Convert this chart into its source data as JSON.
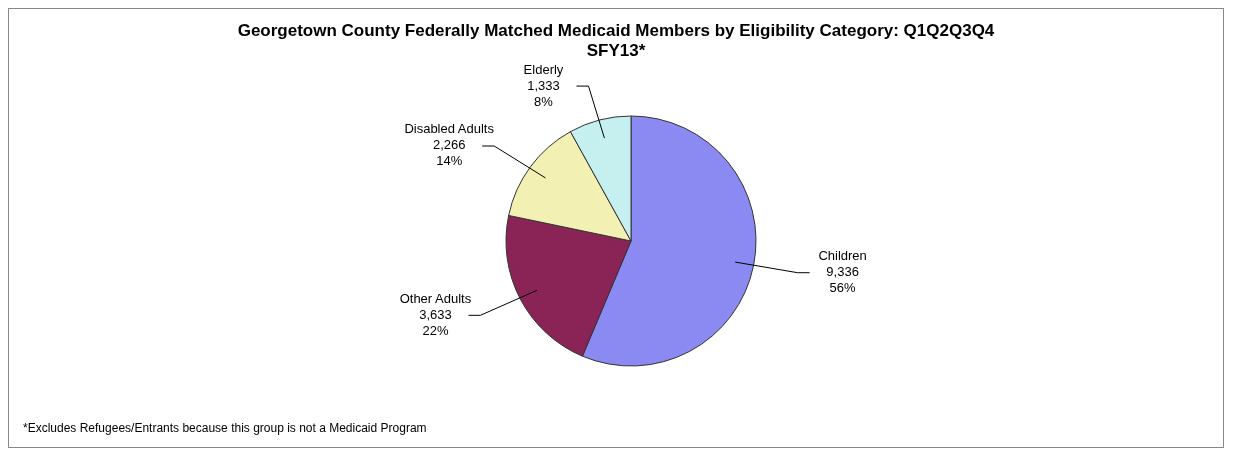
{
  "chart_data": {
    "type": "pie",
    "title": "Georgetown County Federally Matched Medicaid Members by Eligibility Category: Q1Q2Q3Q4 SFY13*",
    "categories": [
      "Children",
      "Other Adults",
      "Disabled Adults",
      "Elderly"
    ],
    "values": [
      9336,
      3633,
      2266,
      1333
    ],
    "value_labels": [
      "9,336\n56%",
      "3,633\n22%",
      "2,266\n14%",
      "1,333\n8%"
    ],
    "colors": [
      "#8a8af2",
      "#8b2456",
      "#f2f0b2",
      "#c6f0ef"
    ],
    "annotations": [
      "*Excludes Refugees/Entrants because this group is not a Medicaid Program"
    ],
    "legend": false
  }
}
